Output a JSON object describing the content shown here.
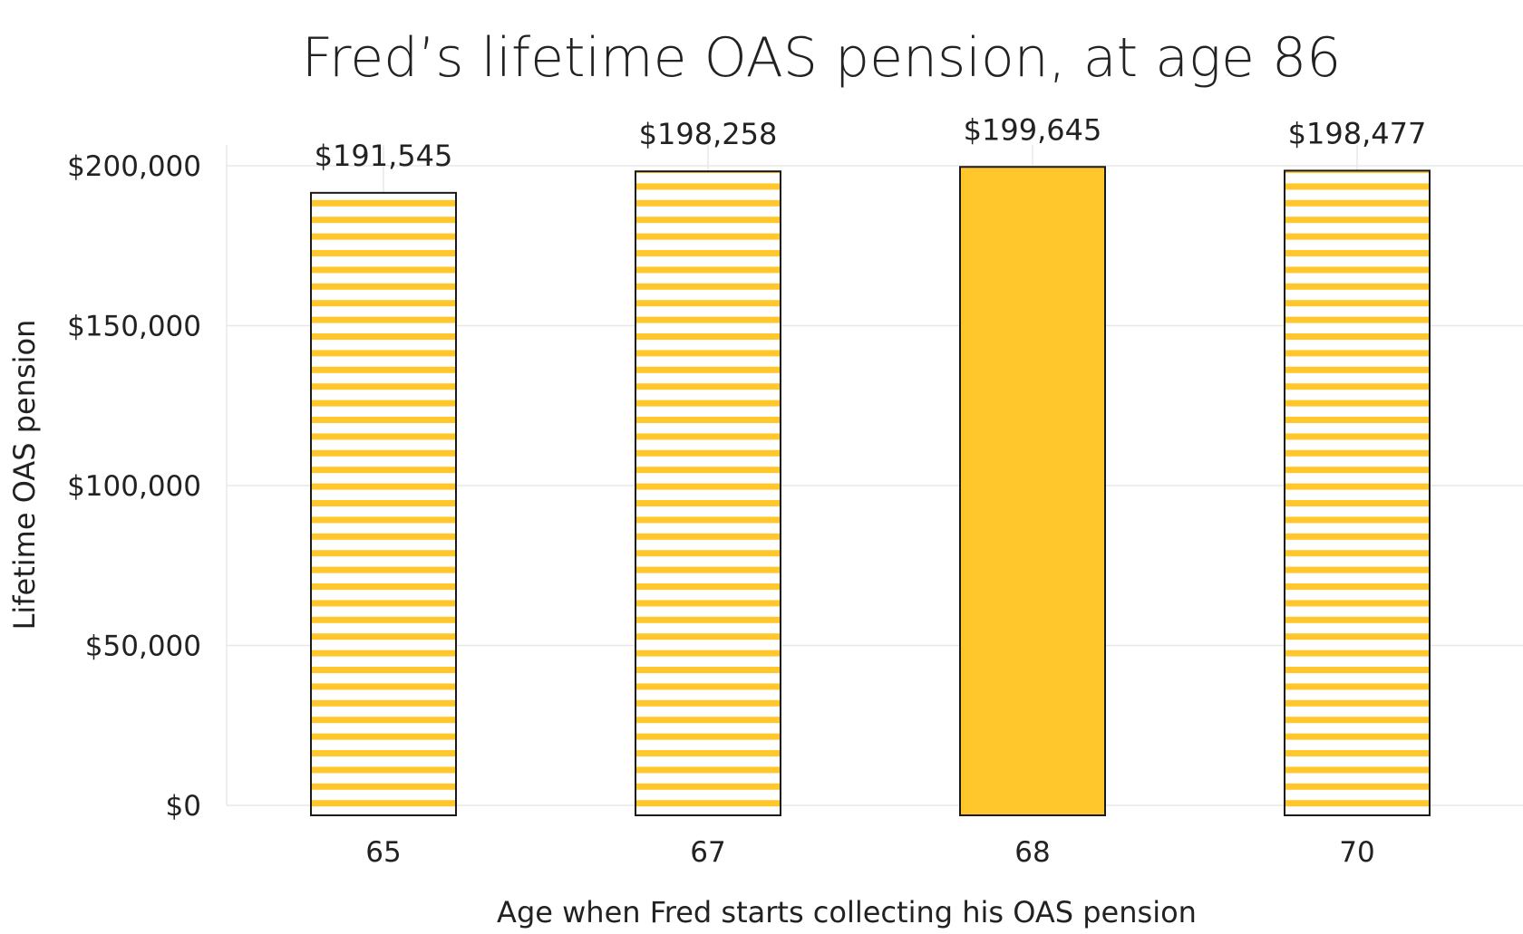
{
  "chart_data": {
    "type": "bar",
    "title": "Fred’s lifetime OAS pension, at age 86",
    "xlabel": "Age when Fred starts collecting his OAS pension",
    "ylabel": "Lifetime OAS pension",
    "categories": [
      "65",
      "67",
      "68",
      "70"
    ],
    "values": [
      191545,
      198258,
      199645,
      198477
    ],
    "value_labels": [
      "$191,545",
      "$198,258",
      "$199,645",
      "$198,477"
    ],
    "highlight": [
      false,
      false,
      true,
      false
    ],
    "ylim": [
      0,
      200000
    ],
    "yticks": [
      0,
      50000,
      100000,
      150000,
      200000
    ],
    "ytick_labels": [
      "$0",
      "$50,000",
      "$100,000",
      "$150,000",
      "$200,000"
    ],
    "grid": true,
    "legend": "none",
    "colors": {
      "bar_fill": "#FFC72C",
      "bar_outline": "#1a1a1a",
      "stripe_background": "#ffffff",
      "grid": "#e8e8e8"
    }
  }
}
